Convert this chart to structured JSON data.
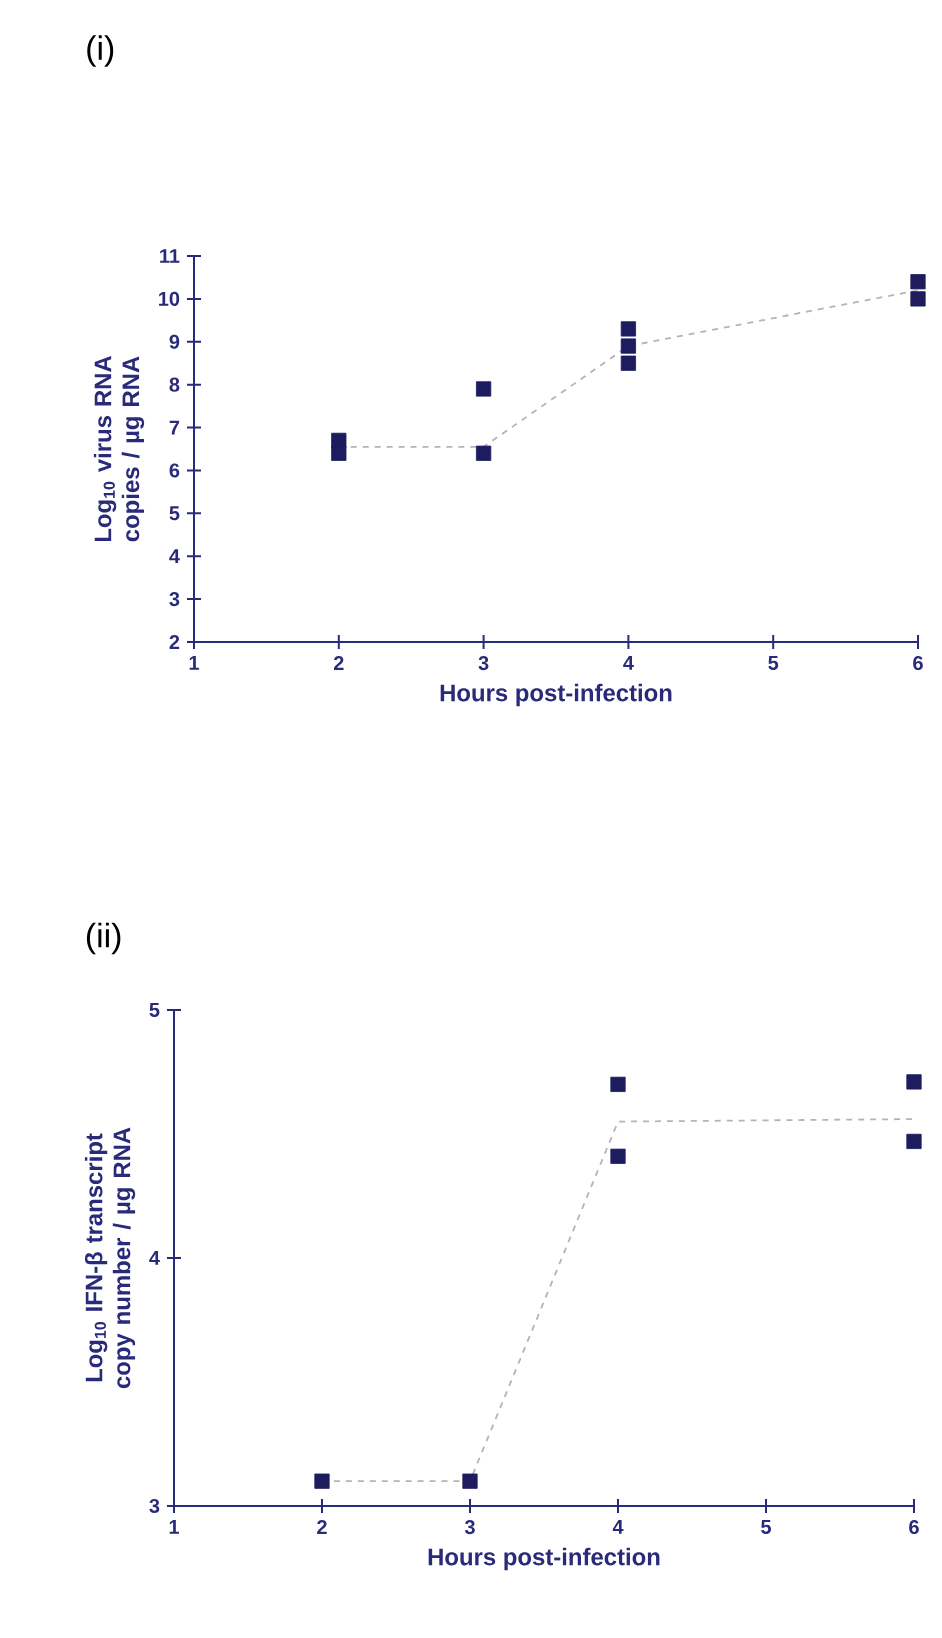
{
  "chart_data": [
    {
      "type": "scatter",
      "title": "(i)",
      "xlabel": "Hours post-infection",
      "ylabel": "Log$_{10}$ virus RNA copies / µg RNA",
      "xlim": [
        1,
        6
      ],
      "ylim": [
        2,
        11
      ],
      "xticks": [
        1,
        2,
        3,
        4,
        5,
        6
      ],
      "yticks": [
        2,
        3,
        4,
        5,
        6,
        7,
        8,
        9,
        10,
        11
      ],
      "series": [
        {
          "marker": "square",
          "color": "#1c1c5e",
          "x": [
            2,
            2,
            3,
            3,
            4,
            4,
            4,
            6,
            6
          ],
          "values": [
            6.7,
            6.4,
            7.9,
            6.4,
            9.3,
            8.9,
            8.5,
            10.4,
            10.0
          ]
        },
        {
          "type": "line",
          "marker": "none",
          "color": "#b4b4b4",
          "line_style": "dashed",
          "x": [
            2,
            3,
            4,
            6
          ],
          "values": [
            6.55,
            6.55,
            8.9,
            10.2
          ]
        }
      ]
    },
    {
      "type": "scatter",
      "title": "(ii)",
      "xlabel": "Hours post-infection",
      "ylabel": "Log$_{10}$ IFN-β transcript copy number / µg RNA",
      "xlim": [
        1,
        6
      ],
      "ylim": [
        3,
        5
      ],
      "xticks": [
        1,
        2,
        3,
        4,
        5,
        6
      ],
      "yticks": [
        3,
        4,
        5
      ],
      "series": [
        {
          "marker": "square",
          "color": "#1c1c5e",
          "x": [
            2,
            3,
            4,
            4,
            6,
            6
          ],
          "values": [
            3.1,
            3.1,
            4.7,
            4.41,
            4.71,
            4.47
          ]
        },
        {
          "type": "line",
          "marker": "none",
          "color": "#b4b4b4",
          "line_style": "dashed",
          "x": [
            2,
            3,
            4,
            6
          ],
          "values": [
            3.1,
            3.1,
            4.55,
            4.56
          ]
        }
      ]
    }
  ]
}
